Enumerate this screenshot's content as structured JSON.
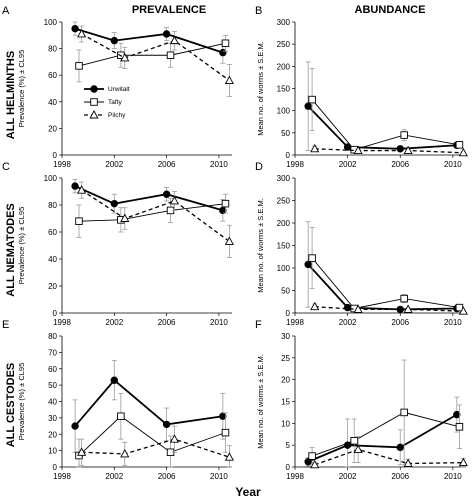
{
  "figure": {
    "column_titles": [
      "PREVALENCE",
      "ABUNDANCE"
    ],
    "row_labels": [
      "ALL HELMINTHS",
      "ALL NEMATODES",
      "ALL CESTODES"
    ],
    "x_axis_label": "Year",
    "legend": [
      {
        "name": "Urwitalt",
        "marker": "filled-circle",
        "line": "solid-thick"
      },
      {
        "name": "Tafty",
        "marker": "open-square",
        "line": "solid-thin"
      },
      {
        "name": "Pilchy",
        "marker": "open-triangle",
        "line": "dashed"
      }
    ],
    "colors": {
      "series": "#000000",
      "errorbars": "#9a9a9a"
    }
  },
  "chart_data": [
    {
      "panel": "A",
      "type": "line",
      "ylabel": "Prevalence (%) ± CL95",
      "xlim": [
        1998,
        2011
      ],
      "ylim": [
        0,
        100
      ],
      "xticks": [
        1998,
        2002,
        2006,
        2010
      ],
      "yticks": [
        0,
        20,
        40,
        60,
        80,
        100
      ],
      "series": [
        {
          "name": "Urwitalt",
          "x": [
            1999,
            2002,
            2006,
            2010.3
          ],
          "y": [
            95,
            86,
            91,
            77
          ],
          "err": [
            5,
            6,
            5,
            8
          ]
        },
        {
          "name": "Tafty",
          "x": [
            1999.3,
            2002.5,
            2006.3,
            2010.5
          ],
          "y": [
            67,
            75,
            75,
            84
          ],
          "err": [
            12,
            9,
            9,
            6
          ]
        },
        {
          "name": "Pilchy",
          "x": [
            1999.5,
            2002.8,
            2006.6,
            2010.8
          ],
          "y": [
            91,
            73,
            86,
            56
          ],
          "err": [
            6,
            8,
            7,
            12
          ]
        }
      ]
    },
    {
      "panel": "B",
      "type": "line",
      "ylabel": "Mean no. of worms ± S.E.M.",
      "xlim": [
        1998,
        2011
      ],
      "ylim": [
        0,
        300
      ],
      "xticks": [
        1998,
        2002,
        2006,
        2010
      ],
      "yticks": [
        0,
        50,
        100,
        150,
        200,
        250,
        300
      ],
      "series": [
        {
          "name": "Urwitalt",
          "x": [
            1999,
            2002,
            2006,
            2010.3
          ],
          "y": [
            110,
            18,
            14,
            22
          ],
          "err": [
            100,
            6,
            4,
            6
          ]
        },
        {
          "name": "Tafty",
          "x": [
            1999.3,
            2002.5,
            2006.3,
            2010.5
          ],
          "y": [
            125,
            12,
            45,
            23
          ],
          "err": [
            70,
            4,
            12,
            6
          ]
        },
        {
          "name": "Pilchy",
          "x": [
            1999.5,
            2002.8,
            2006.6,
            2010.8
          ],
          "y": [
            14,
            10,
            10,
            5
          ],
          "err": [
            6,
            3,
            3,
            2
          ]
        }
      ]
    },
    {
      "panel": "C",
      "type": "line",
      "ylabel": "Prevalence (%) ± CL95",
      "xlim": [
        1998,
        2011
      ],
      "ylim": [
        0,
        100
      ],
      "xticks": [
        1998,
        2002,
        2006,
        2010
      ],
      "yticks": [
        0,
        20,
        40,
        60,
        80,
        100
      ],
      "series": [
        {
          "name": "Urwitalt",
          "x": [
            1999,
            2002,
            2006,
            2010.3
          ],
          "y": [
            94,
            81,
            88,
            76
          ],
          "err": [
            5,
            7,
            5,
            8
          ]
        },
        {
          "name": "Tafty",
          "x": [
            1999.3,
            2002.5,
            2006.3,
            2010.5
          ],
          "y": [
            68,
            69,
            76,
            81
          ],
          "err": [
            12,
            9,
            9,
            7
          ]
        },
        {
          "name": "Pilchy",
          "x": [
            1999.5,
            2002.8,
            2006.6,
            2010.8
          ],
          "y": [
            91,
            70,
            83,
            53
          ],
          "err": [
            6,
            8,
            7,
            12
          ]
        }
      ]
    },
    {
      "panel": "D",
      "type": "line",
      "ylabel": "Mean no. of worms ± S.E.M.",
      "xlim": [
        1998,
        2011
      ],
      "ylim": [
        0,
        300
      ],
      "xticks": [
        1998,
        2002,
        2006,
        2010
      ],
      "yticks": [
        0,
        50,
        100,
        150,
        200,
        250,
        300
      ],
      "series": [
        {
          "name": "Urwitalt",
          "x": [
            1999,
            2002,
            2006,
            2010.3
          ],
          "y": [
            108,
            12,
            8,
            10
          ],
          "err": [
            95,
            4,
            3,
            4
          ]
        },
        {
          "name": "Tafty",
          "x": [
            1999.3,
            2002.5,
            2006.3,
            2010.5
          ],
          "y": [
            122,
            10,
            32,
            12
          ],
          "err": [
            68,
            4,
            9,
            4
          ]
        },
        {
          "name": "Pilchy",
          "x": [
            1999.5,
            2002.8,
            2006.6,
            2010.8
          ],
          "y": [
            14,
            8,
            8,
            4
          ],
          "err": [
            6,
            3,
            3,
            2
          ]
        }
      ]
    },
    {
      "panel": "E",
      "type": "line",
      "ylabel": "Prevalence (%) ± CL95",
      "xlim": [
        1998,
        2011
      ],
      "ylim": [
        0,
        80
      ],
      "xticks": [
        1998,
        2002,
        2006,
        2010
      ],
      "yticks": [
        0,
        10,
        20,
        30,
        40,
        50,
        60,
        70,
        80
      ],
      "series": [
        {
          "name": "Urwitalt",
          "x": [
            1999,
            2002,
            2006,
            2010.3
          ],
          "y": [
            25,
            53,
            26,
            31
          ],
          "err": [
            16,
            12,
            10,
            14
          ]
        },
        {
          "name": "Tafty",
          "x": [
            1999.3,
            2002.5,
            2006.3,
            2010.5
          ],
          "y": [
            7,
            31,
            9,
            21
          ],
          "err": [
            10,
            14,
            10,
            12
          ]
        },
        {
          "name": "Pilchy",
          "x": [
            1999.5,
            2002.8,
            2006.6,
            2010.8
          ],
          "y": [
            9,
            8,
            17,
            6
          ],
          "err": [
            8,
            7,
            8,
            7
          ]
        }
      ]
    },
    {
      "panel": "F",
      "type": "line",
      "ylabel": "Mean no. of worms ± S.E.M.",
      "xlim": [
        1998,
        2011
      ],
      "ylim": [
        0,
        30
      ],
      "xticks": [
        1998,
        2002,
        2006,
        2010
      ],
      "yticks": [
        0,
        5,
        10,
        15,
        20,
        25,
        30
      ],
      "series": [
        {
          "name": "Urwitalt",
          "x": [
            1999,
            2002,
            2006,
            2010.3
          ],
          "y": [
            1.2,
            5,
            4.5,
            12
          ],
          "err": [
            1,
            6,
            4,
            4
          ]
        },
        {
          "name": "Tafty",
          "x": [
            1999.3,
            2002.5,
            2006.3,
            2010.5
          ],
          "y": [
            2.5,
            6,
            12.5,
            9.2
          ],
          "err": [
            2,
            5,
            12,
            5
          ]
        },
        {
          "name": "Pilchy",
          "x": [
            1999.5,
            2002.8,
            2006.6,
            2010.8
          ],
          "y": [
            0.5,
            4,
            0.8,
            1
          ],
          "err": [
            0.5,
            3,
            1,
            1
          ]
        }
      ]
    }
  ]
}
